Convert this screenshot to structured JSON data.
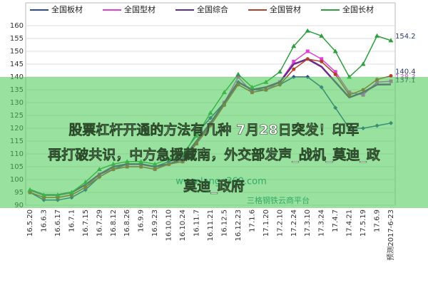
{
  "chart_data": {
    "type": "line",
    "categories": [
      "16.5.20",
      "16.6.3",
      "16.6.17",
      "16.7.1",
      "16.7.15",
      "16.7.29",
      "16.8.12",
      "16.8.26",
      "16.9.9",
      "16.9.23",
      "16.10.10",
      "16.10.24",
      "16.11.7",
      "16.11.21",
      "16.12.5",
      "16.12.23",
      "17.1.6",
      "17.1.20",
      "17.2.10",
      "17.2.24",
      "17.3.10",
      "17.3.24",
      "17.4.7",
      "17.4.21",
      "17.5.19",
      "17.6.9",
      "预测2017-6-23"
    ],
    "series": [
      {
        "name": "全国板材",
        "color": "#2a4a9a",
        "marker": "diamond",
        "values": [
          95,
          92,
          92,
          93,
          96,
          101,
          104,
          106,
          106,
          105,
          107,
          109,
          118,
          124,
          130,
          138,
          135,
          135,
          137,
          140,
          140,
          136,
          128,
          120,
          120,
          121,
          122
        ]
      },
      {
        "name": "全国型材",
        "color": "#e040d8",
        "marker": "square",
        "values": [
          95,
          93,
          93,
          94,
          97,
          102,
          104,
          105,
          105,
          104,
          106,
          107,
          114,
          122,
          130,
          140,
          134,
          135,
          138,
          146,
          150,
          147,
          142,
          134,
          133,
          138,
          138.3
        ],
        "value_labels": [
          null,
          null,
          null,
          null,
          null,
          null,
          null,
          null,
          null,
          null,
          null,
          null,
          null,
          null,
          null,
          null,
          null,
          null,
          null,
          null,
          null,
          null,
          null,
          null,
          null,
          null,
          "138.3"
        ]
      },
      {
        "name": "全国综合",
        "color": "#6a2a8a",
        "marker": "none",
        "values": [
          96,
          94,
          94,
          95,
          98,
          102,
          105,
          106,
          106,
          105,
          106,
          108,
          115,
          122,
          130,
          138,
          135,
          136,
          138,
          145,
          147,
          144,
          138,
          132,
          134,
          137,
          137.1
        ],
        "value_labels": [
          null,
          null,
          null,
          null,
          null,
          null,
          null,
          null,
          null,
          null,
          null,
          null,
          null,
          null,
          null,
          null,
          null,
          null,
          null,
          null,
          null,
          null,
          null,
          null,
          null,
          null,
          "137.1"
        ]
      },
      {
        "name": "全国管材",
        "color": "#b0402a",
        "marker": "circle",
        "values": [
          95,
          93,
          93,
          94,
          97,
          101,
          104,
          105,
          105,
          104,
          106,
          107,
          114,
          121,
          129,
          137,
          134,
          135,
          137,
          143,
          147,
          146,
          141,
          133,
          135,
          139,
          140.4
        ],
        "value_labels": [
          null,
          null,
          null,
          null,
          null,
          null,
          null,
          null,
          null,
          null,
          null,
          null,
          null,
          null,
          null,
          null,
          null,
          null,
          null,
          null,
          null,
          null,
          null,
          null,
          null,
          null,
          "140.4"
        ]
      },
      {
        "name": "全国长材",
        "color": "#2e9e3e",
        "marker": "triangle",
        "values": [
          96,
          94,
          94,
          95,
          99,
          104,
          106,
          107,
          107,
          106,
          108,
          110,
          117,
          126,
          134,
          141,
          136,
          138,
          142,
          152,
          158,
          156,
          150,
          140,
          145,
          156,
          154.2
        ],
        "value_labels": [
          null,
          null,
          null,
          null,
          null,
          null,
          null,
          null,
          null,
          null,
          null,
          null,
          null,
          null,
          null,
          null,
          null,
          null,
          null,
          null,
          null,
          null,
          null,
          null,
          null,
          null,
          "154.2"
        ]
      }
    ],
    "ylim": [
      90,
      160
    ],
    "yticks": [
      90,
      95,
      100,
      105,
      110,
      115,
      120,
      125,
      130,
      135,
      140,
      145,
      150,
      155,
      160
    ],
    "watermark": [
      "www.lange360.com",
      "三格钢铁云商平台"
    ]
  },
  "overlay": {
    "lines": [
      "股票杠杆开通的方法有几种 7月28日突发！印军",
      "再打破共识，中方急援藏南，外交部发声_战机_莫迪_政",
      "莫迪_政府"
    ]
  }
}
